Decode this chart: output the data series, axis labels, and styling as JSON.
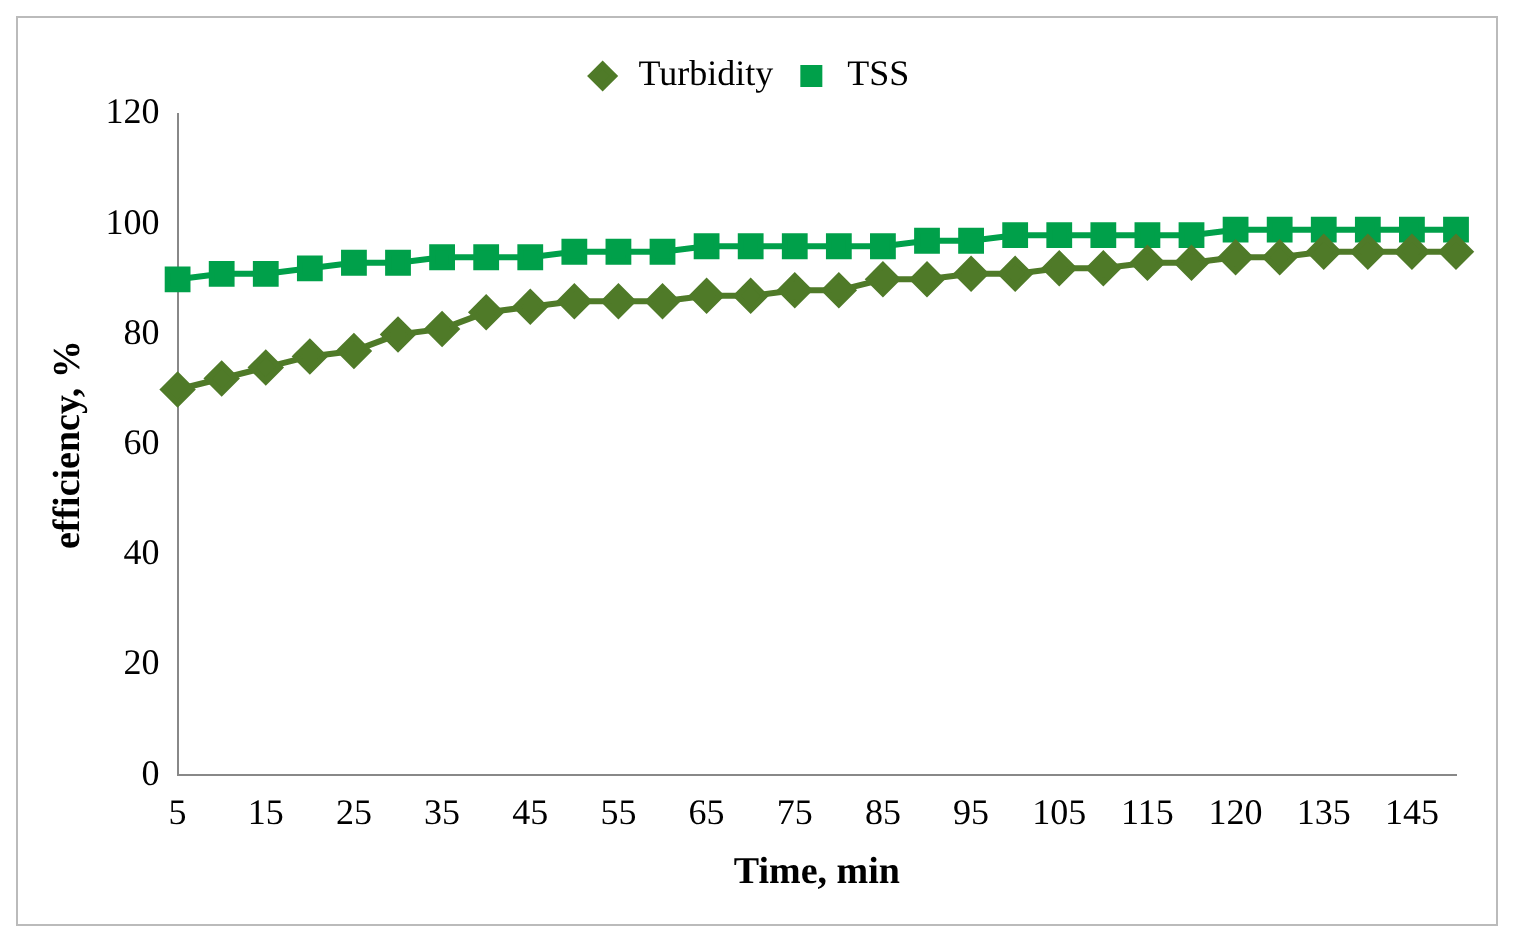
{
  "chart_data": {
    "type": "line",
    "xlabel": "Time, min",
    "ylabel": "efficiency, %",
    "categories": [
      "5",
      null,
      "15",
      null,
      "25",
      null,
      "35",
      null,
      "45",
      null,
      "55",
      null,
      "65",
      null,
      "75",
      null,
      "85",
      null,
      "95",
      null,
      "105",
      null,
      "115",
      null,
      "120",
      null,
      "135",
      null,
      "145",
      null
    ],
    "series": [
      {
        "name": "Turbidity",
        "color": "#4f7a28",
        "marker": "diamond",
        "values": [
          70,
          72,
          74,
          76,
          77,
          80,
          81,
          84,
          85,
          86,
          86,
          86,
          87,
          87,
          88,
          88,
          90,
          90,
          91,
          91,
          92,
          92,
          93,
          93,
          94,
          94,
          95,
          95,
          95,
          95
        ]
      },
      {
        "name": "TSS",
        "color": "#00a04a",
        "marker": "square",
        "values": [
          90,
          91,
          91,
          92,
          93,
          93,
          94,
          94,
          94,
          95,
          95,
          95,
          96,
          96,
          96,
          96,
          96,
          97,
          97,
          98,
          98,
          98,
          98,
          98,
          99,
          99,
          99,
          99,
          99,
          99
        ]
      }
    ],
    "ylim": [
      0,
      120
    ],
    "yticks": [
      0,
      20,
      40,
      60,
      80,
      100,
      120
    ],
    "grid": false,
    "legend": "top"
  }
}
